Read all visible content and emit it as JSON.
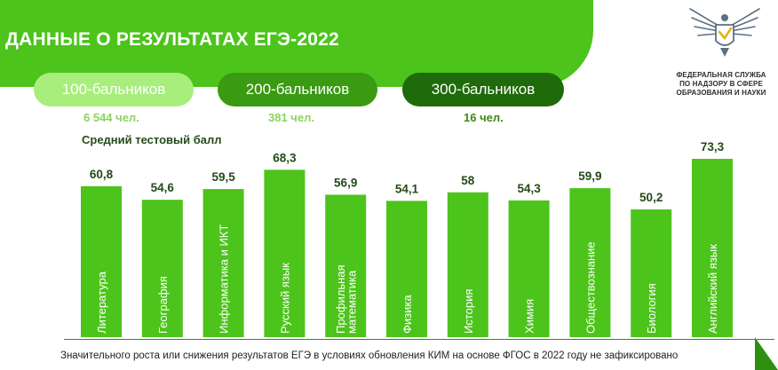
{
  "header": {
    "title": "ДАННЫЕ О РЕЗУЛЬТАТАХ ЕГЭ-2022",
    "org": [
      "ФЕДЕРАЛЬНАЯ СЛУЖБА",
      "ПО НАДЗОРУ В СФЕРЕ",
      "ОБРАЗОВАНИЯ И НАУКИ"
    ]
  },
  "groups": [
    {
      "label": "100-бальников",
      "count": "6 544 чел."
    },
    {
      "label": "200-бальников",
      "count": "381 чел."
    },
    {
      "label": "300-бальников",
      "count": "16 чел."
    }
  ],
  "colors": {
    "bar": "#4cc41b",
    "accent": "#4cc41b",
    "pill_light": "#a8ee7c",
    "pill_mid": "#3a9a12",
    "pill_dark": "#1f6a0a"
  },
  "footnote": "Значительного роста или снижения результатов ЕГЭ в условиях обновления КИМ на основе ФГОС в 2022 году не зафиксировано",
  "chart_data": {
    "type": "bar",
    "title": "",
    "subtitle": "Средний тестовый балл",
    "categories": [
      "Литература",
      "География",
      "Информатика и ИКТ",
      "Русский язык",
      "Профильная математика",
      "Физика",
      "История",
      "Химия",
      "Обществознание",
      "Биология",
      "Английский язык"
    ],
    "value_labels": [
      "60,8",
      "54,6",
      "59,5",
      "68,3",
      "56,9",
      "54,1",
      "58",
      "54,3",
      "59,9",
      "50,2",
      "73,3"
    ],
    "values": [
      60.8,
      54.6,
      59.5,
      68.3,
      56.9,
      54.1,
      58,
      54.3,
      59.9,
      50.2,
      73.3
    ],
    "xlabel": "",
    "ylabel": "",
    "grid": false,
    "legend": "none",
    "category_label_orientation": "vertical"
  }
}
